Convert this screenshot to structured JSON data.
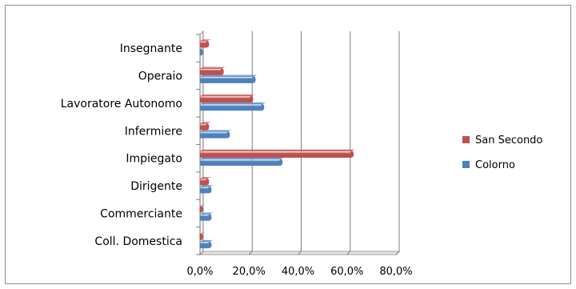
{
  "chart_data": {
    "type": "bar",
    "orientation": "horizontal",
    "categories": [
      "Insegnante",
      "Operaio",
      "Lavoratore Autonomo",
      "Infermiere",
      "Impiegato",
      "Dirigente",
      "Commerciante",
      "Coll. Domestica"
    ],
    "series": [
      {
        "name": "San Secondo",
        "color": "#c0504d",
        "values": [
          3.0,
          9.0,
          21.0,
          3.0,
          62.0,
          3.0,
          0.5,
          0.5
        ]
      },
      {
        "name": "Colorno",
        "color": "#4f81bd",
        "values": [
          0.5,
          22.0,
          25.5,
          11.5,
          33.0,
          4.0,
          4.0,
          4.0
        ]
      }
    ],
    "xlim": [
      0,
      80
    ],
    "x_ticks": [
      "0,0%",
      "20,0%",
      "40,0%",
      "60,0%",
      "80,0%"
    ],
    "grid": true,
    "legend_position": "right"
  }
}
